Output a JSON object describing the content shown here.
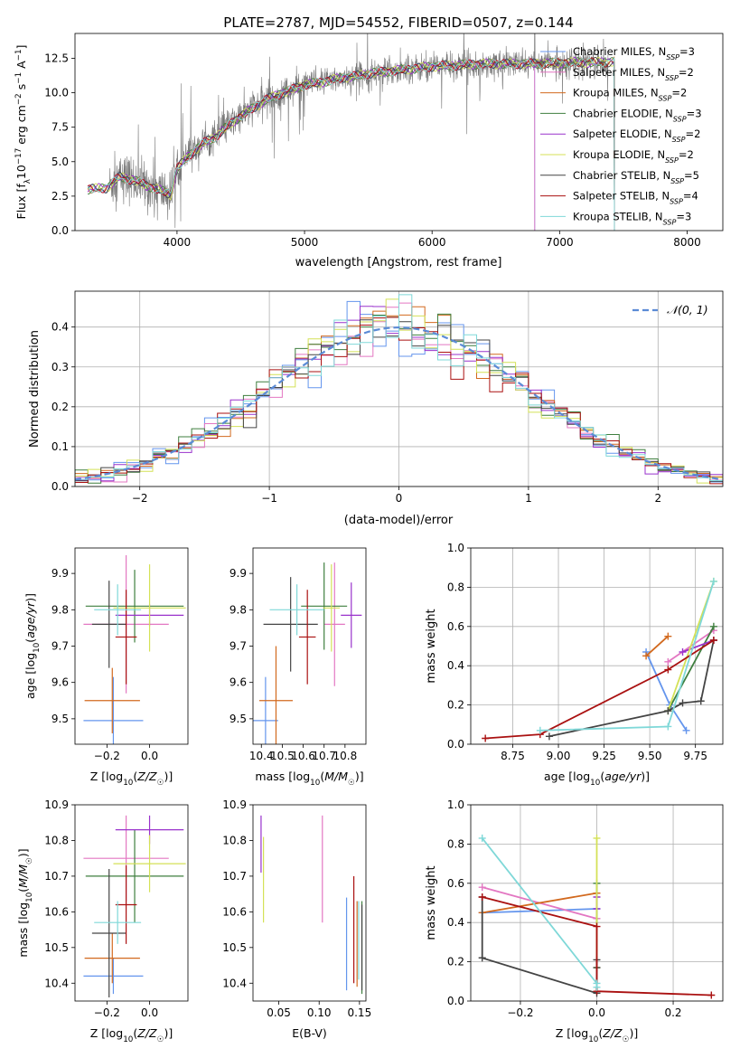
{
  "figure_title": "PLATE=2787, MJD=54552, FIBERID=0507, z=0.144",
  "colors": {
    "chabrier_miles": "#6495ed",
    "salpeter_miles": "#e377c2",
    "kroupa_miles": "#d2691e",
    "chabrier_elodie": "#3f7f3f",
    "salpeter_elodie": "#9932cc",
    "kroupa_elodie": "#d4e157",
    "chabrier_stelib": "#444444",
    "salpeter_stelib": "#aa1111",
    "kroupa_stelib": "#7fd8d8",
    "spectrum": "#777777"
  },
  "chart_data": [
    {
      "id": "spectrum",
      "type": "line",
      "title": "PLATE=2787, MJD=54552, FIBERID=0507, z=0.144",
      "xlabel": "wavelength [Angstrom, rest frame]",
      "ylabel": "Flux [fλ10⁻¹⁷ erg cm⁻² s⁻¹ A⁻¹]",
      "xlim": [
        3200,
        8280
      ],
      "ylim": [
        0,
        14.3
      ],
      "xticks": [
        4000,
        5000,
        6000,
        7000,
        8000
      ],
      "yticks": [
        0.0,
        2.5,
        5.0,
        7.5,
        10.0,
        12.5
      ],
      "legend_position": "top-right",
      "legend": [
        "Chabrier MILES, N_SSP=3",
        "Salpeter MILES, N_SSP=2",
        "Kroupa MILES, N_SSP=2",
        "Chabrier ELODIE, N_SSP=3",
        "Salpeter ELODIE, N_SSP=2",
        "Kroupa ELODIE, N_SSP=2",
        "Chabrier STELIB, N_SSP=5",
        "Salpeter STELIB, N_SSP=4",
        "Kroupa STELIB, N_SSP=3"
      ],
      "continuum": [
        [
          3300,
          3.0
        ],
        [
          3450,
          3.1
        ],
        [
          3550,
          3.9
        ],
        [
          3650,
          3.7
        ],
        [
          3750,
          3.3
        ],
        [
          3850,
          3.0
        ],
        [
          3950,
          2.6
        ],
        [
          4000,
          4.5
        ],
        [
          4100,
          5.5
        ],
        [
          4200,
          6.3
        ],
        [
          4300,
          6.8
        ],
        [
          4400,
          7.6
        ],
        [
          4500,
          8.3
        ],
        [
          4600,
          8.9
        ],
        [
          4700,
          9.5
        ],
        [
          4800,
          9.9
        ],
        [
          4900,
          10.2
        ],
        [
          5000,
          10.6
        ],
        [
          5100,
          10.7
        ],
        [
          5200,
          10.9
        ],
        [
          5300,
          11.1
        ],
        [
          5400,
          11.2
        ],
        [
          5500,
          11.4
        ],
        [
          5600,
          11.5
        ],
        [
          5700,
          11.6
        ],
        [
          5800,
          11.7
        ],
        [
          5900,
          11.8
        ],
        [
          6000,
          11.9
        ],
        [
          6100,
          11.95
        ],
        [
          6200,
          12.0
        ],
        [
          6300,
          12.05
        ],
        [
          6400,
          12.1
        ],
        [
          6500,
          12.1
        ],
        [
          6600,
          12.1
        ],
        [
          6700,
          12.1
        ],
        [
          6800,
          12.1
        ],
        [
          6900,
          12.15
        ],
        [
          7000,
          12.15
        ],
        [
          7100,
          12.2
        ],
        [
          7200,
          12.2
        ],
        [
          7300,
          12.2
        ],
        [
          7400,
          12.25
        ]
      ],
      "model_end": [
        6805,
        6805,
        7430,
        7430,
        7430,
        7430,
        7430,
        7430,
        7430
      ],
      "spectrum_range": [
        3470,
        7380
      ]
    },
    {
      "id": "residuals",
      "type": "histogram",
      "xlabel": "(data-model)/error",
      "ylabel": "Normed distribution",
      "xlim": [
        -2.5,
        2.5
      ],
      "ylim": [
        0,
        0.49
      ],
      "xticks": [
        -2,
        -1,
        0,
        1,
        2
      ],
      "yticks": [
        0.0,
        0.1,
        0.2,
        0.3,
        0.4
      ],
      "legend": [
        "𝒩(0, 1)"
      ],
      "legend_position": "top-right",
      "bin_width": 0.1,
      "grid": true
    },
    {
      "id": "age_vs_Z",
      "type": "errorbar",
      "xlabel": "Z [log10(Z/Z☉)]",
      "ylabel": "age  [log10(age/yr)]",
      "xlim": [
        -0.35,
        0.18
      ],
      "ylim": [
        9.43,
        9.97
      ],
      "xticks": [
        -0.2,
        0.0
      ],
      "yticks": [
        9.5,
        9.6,
        9.7,
        9.8,
        9.9
      ],
      "points": [
        {
          "x": -0.17,
          "xerr": 0.14,
          "y": 9.495,
          "yerr": 0.12,
          "c": "chabrier_miles"
        },
        {
          "x": -0.11,
          "xerr": 0.2,
          "y": 9.76,
          "yerr": 0.19,
          "c": "salpeter_miles"
        },
        {
          "x": -0.175,
          "xerr": 0.13,
          "y": 9.55,
          "yerr": 0.09,
          "c": "kroupa_miles"
        },
        {
          "x": -0.07,
          "xerr": 0.23,
          "y": 9.81,
          "yerr": 0.1,
          "c": "chabrier_elodie"
        },
        {
          "x": 0.0,
          "xerr": 0.16,
          "y": 9.785,
          "yerr": 0.03,
          "c": "salpeter_elodie"
        },
        {
          "x": 0.0,
          "xerr": 0.17,
          "y": 9.805,
          "yerr": 0.12,
          "c": "kroupa_elodie"
        },
        {
          "x": -0.19,
          "xerr": 0.08,
          "y": 9.76,
          "yerr": 0.12,
          "c": "chabrier_stelib"
        },
        {
          "x": -0.11,
          "xerr": 0.05,
          "y": 9.725,
          "yerr": 0.13,
          "c": "salpeter_stelib"
        },
        {
          "x": -0.15,
          "xerr": 0.11,
          "y": 9.8,
          "yerr": 0.07,
          "c": "kroupa_stelib"
        }
      ]
    },
    {
      "id": "age_vs_mass",
      "type": "errorbar",
      "xlabel": "mass [log10(M/M☉)]",
      "ylabel": "",
      "xlim": [
        10.36,
        10.9
      ],
      "ylim": [
        9.43,
        9.97
      ],
      "xticks": [
        10.4,
        10.5,
        10.6,
        10.7,
        10.8
      ],
      "yticks": [
        9.5,
        9.6,
        9.7,
        9.8,
        9.9
      ],
      "points": [
        {
          "x": 10.42,
          "xerr": 0.06,
          "y": 9.495,
          "yerr": 0.12,
          "c": "chabrier_miles"
        },
        {
          "x": 10.75,
          "xerr": 0.05,
          "y": 9.76,
          "yerr": 0.17,
          "c": "salpeter_miles"
        },
        {
          "x": 10.47,
          "xerr": 0.08,
          "y": 9.55,
          "yerr": 0.15,
          "c": "kroupa_miles"
        },
        {
          "x": 10.7,
          "xerr": 0.11,
          "y": 9.81,
          "yerr": 0.12,
          "c": "chabrier_elodie"
        },
        {
          "x": 10.83,
          "xerr": 0.05,
          "y": 9.785,
          "yerr": 0.09,
          "c": "salpeter_elodie"
        },
        {
          "x": 10.735,
          "xerr": 0.04,
          "y": 9.805,
          "yerr": 0.12,
          "c": "kroupa_elodie"
        },
        {
          "x": 10.54,
          "xerr": 0.13,
          "y": 9.76,
          "yerr": 0.13,
          "c": "chabrier_stelib"
        },
        {
          "x": 10.62,
          "xerr": 0.04,
          "y": 9.725,
          "yerr": 0.13,
          "c": "salpeter_stelib"
        },
        {
          "x": 10.57,
          "xerr": 0.13,
          "y": 9.8,
          "yerr": 0.07,
          "c": "kroupa_stelib"
        }
      ]
    },
    {
      "id": "weight_vs_age",
      "type": "line",
      "xlabel": "age  [log10(age/yr)]",
      "ylabel": "mass weight",
      "xlim": [
        8.52,
        9.9
      ],
      "ylim": [
        0,
        1
      ],
      "xticks": [
        8.75,
        9.0,
        9.25,
        9.5,
        9.75
      ],
      "yticks": [
        0.0,
        0.2,
        0.4,
        0.6,
        0.8,
        1.0
      ],
      "grid": true,
      "series": [
        {
          "c": "chabrier_miles",
          "x": [
            9.48,
            9.61,
            9.7
          ],
          "y": [
            0.47,
            0.2,
            0.07
          ]
        },
        {
          "c": "salpeter_miles",
          "x": [
            9.6,
            9.85
          ],
          "y": [
            0.42,
            0.58
          ]
        },
        {
          "c": "kroupa_miles",
          "x": [
            9.48,
            9.6
          ],
          "y": [
            0.45,
            0.55
          ]
        },
        {
          "c": "chabrier_elodie",
          "x": [
            9.6,
            9.85
          ],
          "y": [
            0.17,
            0.6
          ]
        },
        {
          "c": "salpeter_elodie",
          "x": [
            9.68,
            9.85
          ],
          "y": [
            0.47,
            0.53
          ]
        },
        {
          "c": "kroupa_elodie",
          "x": [
            9.6,
            9.85
          ],
          "y": [
            0.17,
            0.83
          ]
        },
        {
          "c": "chabrier_stelib",
          "x": [
            8.95,
            9.6,
            9.68,
            9.78,
            9.85
          ],
          "y": [
            0.04,
            0.17,
            0.21,
            0.22,
            0.53
          ]
        },
        {
          "c": "salpeter_stelib",
          "x": [
            8.6,
            8.9,
            9.6,
            9.85
          ],
          "y": [
            0.03,
            0.05,
            0.38,
            0.53
          ]
        },
        {
          "c": "kroupa_stelib",
          "x": [
            8.9,
            9.6,
            9.85
          ],
          "y": [
            0.07,
            0.09,
            0.83
          ]
        }
      ]
    },
    {
      "id": "mass_vs_Z",
      "type": "errorbar",
      "xlabel": "Z [log10(Z/Z☉)]",
      "ylabel": "mass [log10(M/M☉)]",
      "xlim": [
        -0.35,
        0.18
      ],
      "ylim": [
        10.35,
        10.9
      ],
      "xticks": [
        -0.2,
        0.0
      ],
      "yticks": [
        10.4,
        10.5,
        10.6,
        10.7,
        10.8,
        10.9
      ],
      "points": [
        {
          "x": -0.17,
          "xerr": 0.14,
          "y": 10.42,
          "yerr": 0.05,
          "c": "chabrier_miles"
        },
        {
          "x": -0.11,
          "xerr": 0.2,
          "y": 10.75,
          "yerr": 0.12,
          "c": "salpeter_miles"
        },
        {
          "x": -0.175,
          "xerr": 0.13,
          "y": 10.47,
          "yerr": 0.07,
          "c": "kroupa_miles"
        },
        {
          "x": -0.07,
          "xerr": 0.23,
          "y": 10.7,
          "yerr": 0.13,
          "c": "chabrier_elodie"
        },
        {
          "x": 0.0,
          "xerr": 0.16,
          "y": 10.83,
          "yerr": 0.04,
          "c": "salpeter_elodie"
        },
        {
          "x": 0.0,
          "xerr": 0.17,
          "y": 10.735,
          "yerr": 0.08,
          "c": "kroupa_elodie"
        },
        {
          "x": -0.19,
          "xerr": 0.08,
          "y": 10.54,
          "yerr": 0.18,
          "c": "chabrier_stelib"
        },
        {
          "x": -0.11,
          "xerr": 0.05,
          "y": 10.62,
          "yerr": 0.11,
          "c": "salpeter_stelib"
        },
        {
          "x": -0.15,
          "xerr": 0.11,
          "y": 10.57,
          "yerr": 0.06,
          "c": "kroupa_stelib"
        }
      ]
    },
    {
      "id": "mass_vs_ebv",
      "type": "errorbar",
      "xlabel": "E(B-V)",
      "ylabel": "",
      "xlim": [
        0.018,
        0.158
      ],
      "ylim": [
        10.35,
        10.9
      ],
      "xticks": [
        0.05,
        0.1,
        0.15
      ],
      "yticks": [
        10.4,
        10.5,
        10.6,
        10.7,
        10.8,
        10.9
      ],
      "points": [
        {
          "x": 0.134,
          "y": 10.51,
          "yerr": 0.13,
          "c": "chabrier_miles"
        },
        {
          "x": 0.104,
          "y": 10.72,
          "yerr": 0.15,
          "c": "salpeter_miles"
        },
        {
          "x": 0.147,
          "y": 10.51,
          "yerr": 0.12,
          "c": "kroupa_miles"
        },
        {
          "x": 0.153,
          "y": 10.5,
          "yerr": 0.13,
          "c": "chabrier_elodie"
        },
        {
          "x": 0.028,
          "y": 10.79,
          "yerr": 0.08,
          "c": "salpeter_elodie"
        },
        {
          "x": 0.031,
          "y": 10.69,
          "yerr": 0.12,
          "c": "kroupa_elodie"
        },
        {
          "x": 0.153,
          "y": 10.5,
          "yerr": 0.12,
          "c": "chabrier_stelib"
        },
        {
          "x": 0.143,
          "y": 10.55,
          "yerr": 0.15,
          "c": "salpeter_stelib"
        },
        {
          "x": 0.149,
          "y": 10.52,
          "yerr": 0.11,
          "c": "kroupa_stelib"
        }
      ]
    },
    {
      "id": "weight_vs_Z",
      "type": "line",
      "xlabel": "Z [log10(Z/Z☉)]",
      "ylabel": "mass weight",
      "xlim": [
        -0.33,
        0.33
      ],
      "ylim": [
        0,
        1
      ],
      "xticks": [
        -0.2,
        0.0,
        0.2
      ],
      "yticks": [
        0.0,
        0.2,
        0.4,
        0.6,
        0.8,
        1.0
      ],
      "grid": true,
      "series": [
        {
          "c": "chabrier_miles",
          "x": [
            -0.3,
            0.0
          ],
          "y": [
            0.45,
            0.47
          ]
        },
        {
          "c": "salpeter_miles",
          "x": [
            -0.3,
            0.0
          ],
          "y": [
            0.58,
            0.42
          ]
        },
        {
          "c": "kroupa_miles",
          "x": [
            -0.3,
            0.0
          ],
          "y": [
            0.45,
            0.55
          ]
        },
        {
          "c": "chabrier_elodie",
          "x": [
            0.0,
            0.0
          ],
          "y": [
            0.17,
            0.6
          ]
        },
        {
          "c": "salpeter_elodie",
          "x": [
            0.0,
            0.0
          ],
          "y": [
            0.47,
            0.53
          ]
        },
        {
          "c": "kroupa_elodie",
          "x": [
            0.0,
            0.0
          ],
          "y": [
            0.17,
            0.83
          ]
        },
        {
          "c": "chabrier_stelib",
          "x": [
            -0.3,
            -0.3,
            0.0,
            0.0,
            0.0
          ],
          "y": [
            0.53,
            0.22,
            0.04,
            0.17,
            0.21
          ]
        },
        {
          "c": "salpeter_stelib",
          "x": [
            -0.3,
            0.0,
            0.0,
            0.3
          ],
          "y": [
            0.53,
            0.38,
            0.05,
            0.03
          ]
        },
        {
          "c": "kroupa_stelib",
          "x": [
            -0.3,
            0.0,
            0.0
          ],
          "y": [
            0.83,
            0.09,
            0.07
          ]
        }
      ]
    }
  ]
}
